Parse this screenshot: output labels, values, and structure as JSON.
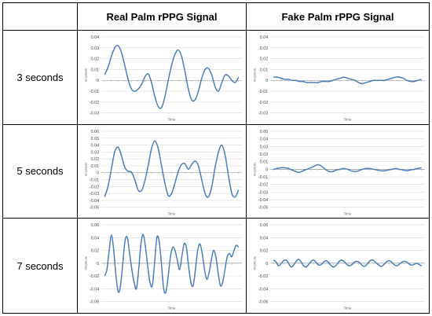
{
  "table": {
    "corner": "",
    "headers": [
      "Real Palm rPPG Signal",
      "Fake Palm rPPG Signal"
    ],
    "rows": [
      "3 seconds",
      "5 seconds",
      "7 seconds"
    ]
  },
  "chart_data": [
    {
      "type": "line",
      "panel": "real-3s",
      "xlabel": "Time",
      "ylabel": "Amplitude",
      "ylim": [
        -0.03,
        0.04
      ],
      "yticks": [
        0.04,
        0.03,
        0.02,
        0.01,
        0,
        -0.01,
        -0.02,
        -0.03
      ],
      "ytick_labels": [
        "0.04",
        "0.03",
        "0.02",
        "0.01",
        "0",
        "-0.01",
        "-0.02",
        "-0.03"
      ],
      "color": "#4a7ebb",
      "x": [
        0,
        1,
        2,
        3,
        4,
        5,
        6,
        7,
        8,
        9,
        10,
        11,
        12,
        13,
        14,
        15,
        16,
        17,
        18,
        19,
        20,
        21,
        22,
        23,
        24,
        25,
        26,
        27,
        28,
        29,
        30,
        31,
        32,
        33,
        34,
        35,
        36,
        37,
        38,
        39,
        40
      ],
      "values": [
        0.005,
        0.012,
        0.022,
        0.03,
        0.032,
        0.026,
        0.014,
        0.001,
        -0.008,
        -0.01,
        -0.008,
        -0.004,
        0.003,
        0.006,
        -0.002,
        -0.015,
        -0.024,
        -0.025,
        -0.015,
        0.0,
        0.014,
        0.024,
        0.028,
        0.022,
        0.008,
        -0.008,
        -0.018,
        -0.018,
        -0.01,
        0.002,
        0.01,
        0.011,
        0.005,
        -0.006,
        -0.01,
        -0.002,
        0.005,
        0.004,
        0.0,
        -0.002,
        0.003
      ]
    },
    {
      "type": "line",
      "panel": "fake-3s",
      "xlabel": "Time",
      "ylabel": "Amplitude",
      "ylim": [
        -0.03,
        0.04
      ],
      "yticks": [
        0.04,
        0.03,
        0.02,
        0.01,
        0,
        -0.01,
        -0.02,
        -0.03
      ],
      "ytick_labels": [
        "0.04",
        "0.03",
        "0.02",
        "0.01",
        "0",
        "-0.01",
        "-0.02",
        "-0.03"
      ],
      "color": "#4a7ebb",
      "x": [
        0,
        1,
        2,
        3,
        4,
        5,
        6,
        7,
        8,
        9,
        10,
        11,
        12,
        13,
        14,
        15,
        16,
        17,
        18,
        19,
        20,
        21,
        22,
        23,
        24,
        25,
        26,
        27,
        28,
        29,
        30,
        31,
        32,
        33,
        34,
        35,
        36,
        37,
        38,
        39,
        40
      ],
      "values": [
        0.003,
        0.003,
        0.002,
        0.001,
        0.001,
        0.0,
        0.0,
        -0.001,
        -0.001,
        -0.002,
        -0.002,
        -0.002,
        -0.002,
        -0.001,
        -0.001,
        -0.001,
        0.0,
        0.001,
        0.002,
        0.003,
        0.002,
        0.001,
        0.0,
        -0.002,
        -0.003,
        -0.002,
        -0.001,
        0.0,
        0.0,
        0.0,
        0.0,
        0.001,
        0.002,
        0.003,
        0.003,
        0.002,
        0.0,
        -0.001,
        -0.001,
        0.0,
        0.001
      ]
    },
    {
      "type": "line",
      "panel": "real-5s",
      "xlabel": "Time",
      "ylabel": "Amplitude",
      "ylim": [
        -0.05,
        0.06
      ],
      "yticks": [
        0.06,
        0.05,
        0.04,
        0.03,
        0.02,
        0.01,
        0,
        -0.01,
        -0.02,
        -0.03,
        -0.04,
        -0.05
      ],
      "ytick_labels": [
        "0.06",
        "0.05",
        "0.04",
        "0.03",
        "0.02",
        "0.01",
        "0",
        "-0.01",
        "-0.02",
        "-0.03",
        "-0.04",
        "-0.05"
      ],
      "color": "#4a7ebb",
      "x": [
        0,
        1,
        2,
        3,
        4,
        5,
        6,
        7,
        8,
        9,
        10,
        11,
        12,
        13,
        14,
        15,
        16,
        17,
        18,
        19,
        20,
        21,
        22,
        23,
        24,
        25,
        26,
        27,
        28,
        29,
        30,
        31,
        32,
        33,
        34,
        35,
        36,
        37,
        38,
        39,
        40
      ],
      "values": [
        -0.035,
        -0.02,
        0.005,
        0.03,
        0.037,
        0.025,
        0.008,
        0.002,
        0.001,
        -0.01,
        -0.025,
        -0.026,
        -0.012,
        0.01,
        0.035,
        0.046,
        0.035,
        0.01,
        -0.015,
        -0.033,
        -0.03,
        -0.015,
        0.002,
        0.012,
        0.013,
        0.005,
        0.012,
        0.017,
        0.01,
        -0.01,
        -0.03,
        -0.035,
        -0.02,
        0.008,
        0.03,
        0.04,
        0.025,
        -0.005,
        -0.03,
        -0.035,
        -0.025
      ]
    },
    {
      "type": "line",
      "panel": "fake-5s",
      "xlabel": "Time",
      "ylabel": "Amplitude",
      "ylim": [
        -0.05,
        0.05
      ],
      "yticks": [
        0.05,
        0.04,
        0.03,
        0.02,
        0.01,
        0,
        -0.01,
        -0.02,
        -0.03,
        -0.04,
        -0.05
      ],
      "ytick_labels": [
        "0.05",
        "0.04",
        "0.03",
        "0.02",
        "0.01",
        "0",
        "-0.01",
        "-0.02",
        "-0.03",
        "-0.04",
        "-0.05"
      ],
      "color": "#4a7ebb",
      "x": [
        0,
        1,
        2,
        3,
        4,
        5,
        6,
        7,
        8,
        9,
        10,
        11,
        12,
        13,
        14,
        15,
        16,
        17,
        18,
        19,
        20,
        21,
        22,
        23,
        24,
        25,
        26,
        27,
        28,
        29,
        30,
        31,
        32,
        33,
        34,
        35,
        36,
        37,
        38,
        39,
        40
      ],
      "values": [
        0.0,
        0.001,
        0.002,
        0.002,
        0.001,
        -0.001,
        -0.003,
        -0.004,
        -0.002,
        0.0,
        0.002,
        0.004,
        0.006,
        0.004,
        0.0,
        -0.003,
        -0.003,
        -0.001,
        0.0,
        0.001,
        0.0,
        -0.002,
        -0.003,
        -0.002,
        0.0,
        0.001,
        0.001,
        0.0,
        -0.001,
        -0.002,
        -0.002,
        -0.001,
        0.0,
        0.001,
        0.0,
        -0.001,
        -0.002,
        -0.001,
        0.0,
        0.001,
        0.002
      ]
    },
    {
      "type": "line",
      "panel": "real-7s",
      "xlabel": "Time",
      "ylabel": "Amplitude",
      "ylim": [
        -0.06,
        0.06
      ],
      "yticks": [
        0.06,
        0.04,
        0.02,
        0,
        -0.02,
        -0.04,
        -0.06
      ],
      "ytick_labels": [
        "0.06",
        "0.04",
        "0.02",
        "0",
        "-0.02",
        "-0.04",
        "-0.06"
      ],
      "color": "#4a7ebb",
      "x": [
        0,
        1,
        2,
        3,
        4,
        5,
        6,
        7,
        8,
        9,
        10,
        11,
        12,
        13,
        14,
        15,
        16,
        17,
        18,
        19,
        20,
        21,
        22,
        23,
        24,
        25,
        26,
        27,
        28,
        29,
        30,
        31,
        32,
        33,
        34,
        35,
        36,
        37,
        38,
        39,
        40,
        41,
        42,
        43,
        44,
        45,
        46,
        47,
        48,
        49,
        50,
        51,
        52,
        53,
        54,
        55,
        56,
        57,
        58,
        59
      ],
      "values": [
        -0.02,
        -0.01,
        0.02,
        0.044,
        0.02,
        -0.02,
        -0.045,
        -0.035,
        0.0,
        0.035,
        0.04,
        0.015,
        -0.01,
        -0.03,
        -0.04,
        -0.01,
        0.03,
        0.045,
        0.025,
        -0.005,
        -0.03,
        -0.035,
        0.0,
        0.04,
        0.035,
        0.0,
        -0.04,
        -0.045,
        -0.02,
        0.01,
        0.025,
        0.02,
        0.005,
        -0.01,
        0.01,
        0.03,
        0.025,
        -0.005,
        -0.03,
        -0.035,
        -0.01,
        0.02,
        0.03,
        0.015,
        -0.01,
        -0.025,
        -0.015,
        0.005,
        0.02,
        0.01,
        -0.015,
        -0.035,
        -0.03,
        -0.01,
        0.01,
        0.015,
        0.01,
        0.02,
        0.028,
        0.025
      ]
    },
    {
      "type": "line",
      "panel": "fake-7s",
      "xlabel": "Time",
      "ylabel": "Amplitude",
      "ylim": [
        -0.06,
        0.06
      ],
      "yticks": [
        0.06,
        0.04,
        0.02,
        0,
        -0.02,
        -0.04,
        -0.06
      ],
      "ytick_labels": [
        "0.06",
        "0.04",
        "0.02",
        "0",
        "-0.02",
        "-0.04",
        "-0.06"
      ],
      "color": "#4a7ebb",
      "x": [
        0,
        1,
        2,
        3,
        4,
        5,
        6,
        7,
        8,
        9,
        10,
        11,
        12,
        13,
        14,
        15,
        16,
        17,
        18,
        19,
        20,
        21,
        22,
        23,
        24,
        25,
        26,
        27,
        28,
        29,
        30,
        31,
        32,
        33,
        34,
        35,
        36,
        37,
        38,
        39,
        40,
        41,
        42,
        43,
        44,
        45,
        46,
        47,
        48,
        49,
        50,
        51,
        52,
        53,
        54,
        55,
        56,
        57,
        58,
        59
      ],
      "values": [
        0.005,
        0.002,
        -0.004,
        -0.001,
        0.004,
        0.005,
        0.0,
        -0.006,
        -0.003,
        0.003,
        0.006,
        0.002,
        -0.004,
        -0.006,
        -0.002,
        0.003,
        0.005,
        0.001,
        -0.003,
        -0.002,
        0.002,
        0.004,
        0.001,
        -0.004,
        -0.006,
        -0.003,
        0.002,
        0.005,
        0.003,
        -0.001,
        -0.004,
        -0.003,
        0.001,
        0.003,
        0.002,
        -0.002,
        -0.005,
        -0.003,
        0.002,
        0.005,
        0.004,
        0.0,
        -0.003,
        -0.005,
        -0.002,
        0.002,
        0.004,
        0.002,
        -0.002,
        -0.004,
        -0.002,
        0.001,
        0.003,
        0.002,
        -0.001,
        -0.003,
        -0.002,
        0.0,
        -0.002,
        -0.004
      ]
    }
  ]
}
